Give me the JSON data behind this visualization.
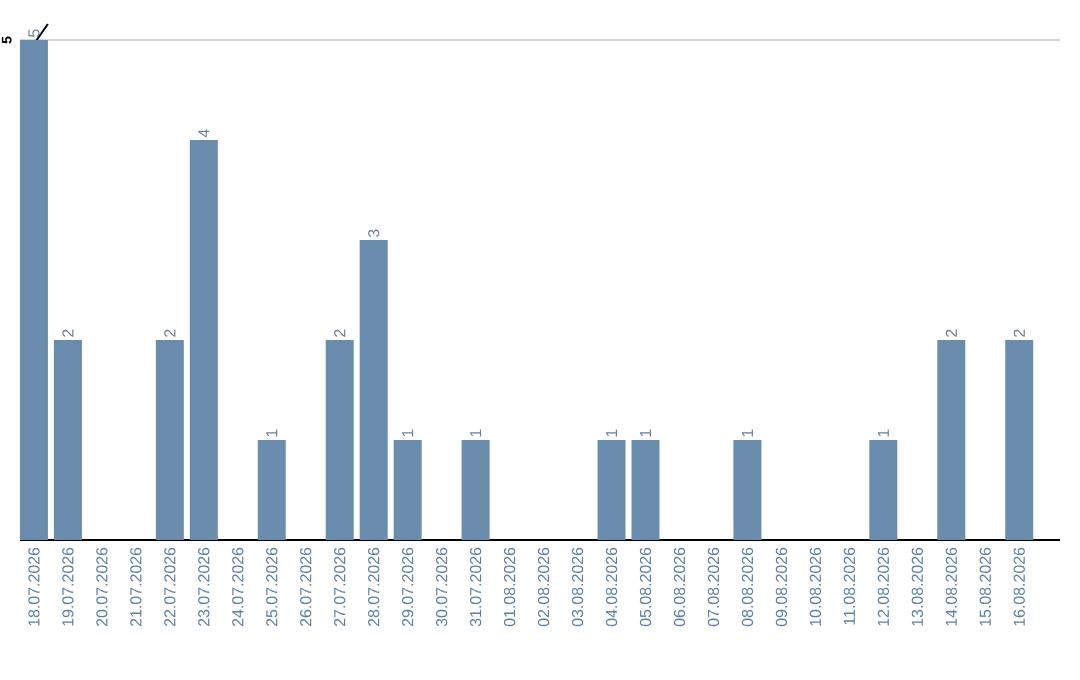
{
  "chart_data": {
    "type": "bar",
    "categories": [
      "18.07.2026",
      "19.07.2026",
      "20.07.2026",
      "21.07.2026",
      "22.07.2026",
      "23.07.2026",
      "24.07.2026",
      "25.07.2026",
      "26.07.2026",
      "27.07.2026",
      "28.07.2026",
      "29.07.2026",
      "30.07.2026",
      "31.07.2026",
      "01.08.2026",
      "02.08.2026",
      "03.08.2026",
      "04.08.2026",
      "05.08.2026",
      "06.08.2026",
      "07.08.2026",
      "08.08.2026",
      "09.08.2026",
      "10.08.2026",
      "11.08.2026",
      "12.08.2026",
      "13.08.2026",
      "14.08.2026",
      "15.08.2026",
      "16.08.2026"
    ],
    "values": [
      5,
      2,
      0,
      0,
      2,
      4,
      0,
      1,
      0,
      2,
      3,
      1,
      0,
      1,
      0,
      0,
      0,
      1,
      1,
      0,
      0,
      1,
      0,
      0,
      0,
      1,
      0,
      2,
      0,
      2
    ],
    "value_labels": [
      "5",
      "2",
      null,
      null,
      "2",
      "4",
      null,
      "1",
      null,
      "2",
      "3",
      "1",
      null,
      "1",
      null,
      null,
      null,
      "1",
      "1",
      null,
      null,
      "1",
      null,
      null,
      null,
      "1",
      null,
      "2",
      null,
      "2"
    ],
    "color": "#6a8cad",
    "ylim": [
      0,
      5
    ],
    "ref_lines": [
      {
        "axis": "y",
        "value": 5,
        "label": "5",
        "color": "#c8c8c8"
      }
    ]
  }
}
